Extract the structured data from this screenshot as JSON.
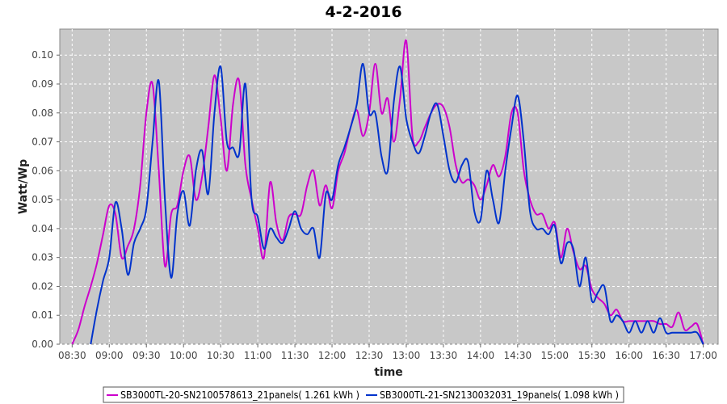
{
  "chart_data": {
    "type": "line",
    "title": "4-2-2016",
    "xlabel": "time",
    "ylabel": "Watt/Wp",
    "xlim": [
      "08:20",
      "17:12"
    ],
    "ylim": [
      0,
      0.109
    ],
    "x_ticks": [
      "08:30",
      "09:00",
      "09:30",
      "10:00",
      "10:30",
      "11:00",
      "11:30",
      "12:00",
      "12:30",
      "13:00",
      "13:30",
      "14:00",
      "14:30",
      "15:00",
      "15:30",
      "16:00",
      "16:30",
      "17:00"
    ],
    "y_ticks": [
      "0.00",
      "0.01",
      "0.02",
      "0.03",
      "0.04",
      "0.05",
      "0.06",
      "0.07",
      "0.08",
      "0.09",
      "0.10"
    ],
    "grid": true,
    "legend_position": "bottom",
    "series": [
      {
        "name": "SB3000TL-20-SN2100578613_21panels( 1.261 kWh )",
        "color": "#cc00cc",
        "x": [
          "08:30",
          "08:35",
          "08:40",
          "08:45",
          "08:50",
          "08:55",
          "09:00",
          "09:05",
          "09:10",
          "09:15",
          "09:20",
          "09:25",
          "09:30",
          "09:35",
          "09:40",
          "09:45",
          "09:50",
          "09:55",
          "10:00",
          "10:05",
          "10:10",
          "10:15",
          "10:20",
          "10:25",
          "10:30",
          "10:35",
          "10:40",
          "10:45",
          "10:50",
          "10:55",
          "11:00",
          "11:05",
          "11:10",
          "11:15",
          "11:20",
          "11:25",
          "11:30",
          "11:35",
          "11:40",
          "11:45",
          "11:50",
          "11:55",
          "12:00",
          "12:05",
          "12:10",
          "12:15",
          "12:20",
          "12:25",
          "12:30",
          "12:35",
          "12:40",
          "12:45",
          "12:50",
          "12:55",
          "13:00",
          "13:05",
          "13:10",
          "13:15",
          "13:20",
          "13:25",
          "13:30",
          "13:35",
          "13:40",
          "13:45",
          "13:50",
          "13:55",
          "14:00",
          "14:05",
          "14:10",
          "14:15",
          "14:20",
          "14:25",
          "14:30",
          "14:35",
          "14:40",
          "14:45",
          "14:50",
          "14:55",
          "15:00",
          "15:05",
          "15:10",
          "15:15",
          "15:20",
          "15:25",
          "15:30",
          "15:35",
          "15:40",
          "15:45",
          "15:50",
          "15:55",
          "16:00",
          "16:05",
          "16:10",
          "16:15",
          "16:20",
          "16:25",
          "16:30",
          "16:35",
          "16:40",
          "16:45",
          "16:50",
          "16:55",
          "17:00"
        ],
        "values": [
          0.0,
          0.005,
          0.013,
          0.02,
          0.028,
          0.038,
          0.048,
          0.045,
          0.03,
          0.034,
          0.04,
          0.055,
          0.08,
          0.09,
          0.06,
          0.027,
          0.045,
          0.048,
          0.06,
          0.065,
          0.05,
          0.058,
          0.075,
          0.093,
          0.078,
          0.06,
          0.083,
          0.091,
          0.062,
          0.05,
          0.04,
          0.03,
          0.056,
          0.042,
          0.036,
          0.044,
          0.045,
          0.045,
          0.055,
          0.06,
          0.048,
          0.055,
          0.047,
          0.06,
          0.066,
          0.075,
          0.081,
          0.072,
          0.08,
          0.097,
          0.08,
          0.085,
          0.07,
          0.085,
          0.105,
          0.072,
          0.07,
          0.075,
          0.08,
          0.083,
          0.082,
          0.075,
          0.062,
          0.056,
          0.057,
          0.055,
          0.05,
          0.055,
          0.062,
          0.058,
          0.065,
          0.08,
          0.08,
          0.06,
          0.05,
          0.045,
          0.045,
          0.04,
          0.042,
          0.03,
          0.04,
          0.032,
          0.026,
          0.027,
          0.019,
          0.016,
          0.014,
          0.01,
          0.012,
          0.008,
          0.008,
          0.008,
          0.008,
          0.008,
          0.008,
          0.007,
          0.007,
          0.006,
          0.011,
          0.005,
          0.006,
          0.007,
          0.0
        ]
      },
      {
        "name": "SB3000TL-21-SN2130032031_19panels( 1.098 kWh )",
        "color": "#0033cc",
        "x": [
          "08:30",
          "08:35",
          "08:40",
          "08:45",
          "08:50",
          "08:55",
          "09:00",
          "09:05",
          "09:10",
          "09:15",
          "09:20",
          "09:25",
          "09:30",
          "09:35",
          "09:40",
          "09:45",
          "09:50",
          "09:55",
          "10:00",
          "10:05",
          "10:10",
          "10:15",
          "10:20",
          "10:25",
          "10:30",
          "10:35",
          "10:40",
          "10:45",
          "10:50",
          "10:55",
          "11:00",
          "11:05",
          "11:10",
          "11:15",
          "11:20",
          "11:25",
          "11:30",
          "11:35",
          "11:40",
          "11:45",
          "11:50",
          "11:55",
          "12:00",
          "12:05",
          "12:10",
          "12:15",
          "12:20",
          "12:25",
          "12:30",
          "12:35",
          "12:40",
          "12:45",
          "12:50",
          "12:55",
          "13:00",
          "13:05",
          "13:10",
          "13:15",
          "13:20",
          "13:25",
          "13:30",
          "13:35",
          "13:40",
          "13:45",
          "13:50",
          "13:55",
          "14:00",
          "14:05",
          "14:10",
          "14:15",
          "14:20",
          "14:25",
          "14:30",
          "14:35",
          "14:40",
          "14:45",
          "14:50",
          "14:55",
          "15:00",
          "15:05",
          "15:10",
          "15:15",
          "15:20",
          "15:25",
          "15:30",
          "15:35",
          "15:40",
          "15:45",
          "15:50",
          "15:55",
          "16:00",
          "16:05",
          "16:10",
          "16:15",
          "16:20",
          "16:25",
          "16:30",
          "16:35",
          "16:40",
          "16:45",
          "16:50",
          "16:55",
          "17:00"
        ],
        "values": [
          null,
          null,
          null,
          0.0,
          0.012,
          0.022,
          0.03,
          0.049,
          0.04,
          0.024,
          0.035,
          0.04,
          0.047,
          0.07,
          0.091,
          0.05,
          0.023,
          0.045,
          0.053,
          0.041,
          0.06,
          0.067,
          0.052,
          0.08,
          0.096,
          0.07,
          0.068,
          0.066,
          0.09,
          0.05,
          0.044,
          0.033,
          0.04,
          0.037,
          0.035,
          0.04,
          0.046,
          0.04,
          0.038,
          0.04,
          0.03,
          0.052,
          0.05,
          0.062,
          0.068,
          0.075,
          0.083,
          0.097,
          0.08,
          0.08,
          0.065,
          0.06,
          0.084,
          0.096,
          0.078,
          0.07,
          0.066,
          0.072,
          0.08,
          0.083,
          0.072,
          0.06,
          0.056,
          0.062,
          0.063,
          0.046,
          0.043,
          0.06,
          0.05,
          0.042,
          0.06,
          0.075,
          0.086,
          0.07,
          0.046,
          0.04,
          0.04,
          0.038,
          0.041,
          0.028,
          0.035,
          0.033,
          0.02,
          0.03,
          0.015,
          0.018,
          0.02,
          0.008,
          0.01,
          0.008,
          0.004,
          0.008,
          0.004,
          0.008,
          0.004,
          0.009,
          0.004,
          0.004,
          0.004,
          0.004,
          0.004,
          0.004,
          0.0
        ]
      }
    ]
  }
}
